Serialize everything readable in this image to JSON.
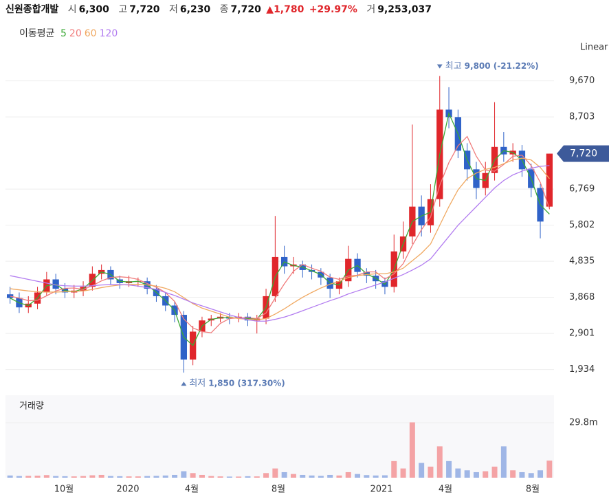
{
  "header": {
    "name": "신원종합개발",
    "open_label": "시",
    "open": "6,300",
    "high_label": "고",
    "high": "7,720",
    "low_label": "저",
    "low": "6,230",
    "close_label": "종",
    "close": "7,720",
    "change": "▲1,780",
    "change_pct": "+29.97%",
    "volume_label": "거",
    "volume": "9,253,037"
  },
  "ma_legend": {
    "title": "이동평균",
    "items": [
      "5",
      "20",
      "60",
      "120"
    ]
  },
  "scale_label": "Linear",
  "chart_data": [
    {
      "type": "candlestick",
      "up_color": "#e0262b",
      "down_color": "#2f62c8",
      "categories": [
        null,
        null,
        null,
        null,
        null,
        null,
        null,
        null,
        null,
        null,
        null,
        null,
        null,
        null,
        null,
        null,
        null,
        null,
        null,
        null,
        null,
        null,
        null,
        null,
        null,
        null,
        null,
        null,
        null,
        null,
        null,
        null,
        null,
        null,
        null,
        null,
        null,
        null,
        null,
        null,
        null,
        null,
        null,
        null,
        null,
        null,
        null,
        null,
        null,
        null,
        null,
        null,
        null,
        null,
        null,
        null,
        null,
        null,
        null,
        null
      ],
      "open": [
        3950,
        3850,
        3600,
        3700,
        4000,
        4350,
        4100,
        4000,
        4050,
        4150,
        4500,
        4600,
        4350,
        4250,
        4300,
        4300,
        4100,
        3900,
        3650,
        3400,
        2200,
        2950,
        3250,
        3300,
        3350,
        3300,
        3350,
        3250,
        3300,
        3900,
        4950,
        4700,
        4750,
        4600,
        4550,
        4400,
        4100,
        4300,
        4900,
        4550,
        4450,
        4300,
        4150,
        5100,
        5500,
        6300,
        5800,
        6500,
        8900,
        8700,
        7800,
        7300,
        6800,
        7200,
        7900,
        7700,
        7800,
        7300,
        6800,
        6300
      ],
      "high": [
        4150,
        4000,
        3900,
        4150,
        4550,
        4500,
        4250,
        4200,
        4300,
        4700,
        4750,
        4700,
        4450,
        4450,
        4400,
        4400,
        4200,
        4000,
        3750,
        3500,
        3100,
        3350,
        3400,
        3450,
        3450,
        3450,
        3450,
        3400,
        4100,
        6050,
        5250,
        4950,
        4850,
        4750,
        4650,
        4500,
        4400,
        5250,
        5050,
        4650,
        4600,
        4400,
        5550,
        5900,
        8500,
        6600,
        6900,
        9800,
        9500,
        8900,
        8000,
        7500,
        7500,
        9100,
        8300,
        8000,
        7950,
        7450,
        6900,
        7720
      ],
      "low": [
        3700,
        3450,
        3450,
        3550,
        3900,
        3950,
        3850,
        3850,
        3900,
        4050,
        4350,
        4200,
        4100,
        4150,
        4150,
        3950,
        3750,
        3500,
        3200,
        1850,
        2050,
        2800,
        3100,
        3200,
        3150,
        3200,
        3100,
        2900,
        3150,
        3750,
        4500,
        4500,
        4400,
        4350,
        4200,
        3850,
        3950,
        4150,
        4400,
        4250,
        4100,
        3950,
        4000,
        4900,
        5300,
        5500,
        5600,
        6300,
        8400,
        7600,
        7000,
        6500,
        6600,
        7000,
        7500,
        7500,
        7100,
        6550,
        5450,
        6230
      ],
      "close": [
        3850,
        3600,
        3700,
        4000,
        4350,
        4100,
        4000,
        4050,
        4150,
        4500,
        4600,
        4350,
        4250,
        4300,
        4300,
        4100,
        3900,
        3650,
        3400,
        2200,
        2950,
        3250,
        3300,
        3350,
        3300,
        3350,
        3250,
        3300,
        3900,
        4950,
        4700,
        4750,
        4600,
        4550,
        4400,
        4100,
        4300,
        4900,
        4550,
        4450,
        4300,
        4150,
        5100,
        5500,
        6300,
        5800,
        6500,
        8900,
        8700,
        7800,
        7300,
        6800,
        7200,
        7900,
        7700,
        7800,
        7300,
        6800,
        5900,
        7720
      ],
      "series": [
        {
          "name": "5",
          "color": "#3aa835",
          "values": [
            3850,
            3720,
            3650,
            3850,
            4180,
            4220,
            4050,
            4020,
            4100,
            4320,
            4550,
            4480,
            4300,
            4280,
            4300,
            4200,
            4000,
            3780,
            3520,
            2800,
            2580,
            3100,
            3280,
            3320,
            3320,
            3320,
            3300,
            3280,
            3600,
            4420,
            4820,
            4720,
            4680,
            4580,
            4480,
            4250,
            4200,
            4600,
            4720,
            4500,
            4380,
            4220,
            4620,
            5300,
            5900,
            6050,
            6150,
            7700,
            8800,
            8250,
            7550,
            7050,
            7000,
            7550,
            7800,
            7750,
            7550,
            7050,
            6350,
            6100
          ]
        },
        {
          "name": "20",
          "color": "#f07b7b",
          "values": [
            3900,
            3850,
            3780,
            3790,
            3910,
            4040,
            4110,
            4120,
            4080,
            4180,
            4310,
            4400,
            4420,
            4400,
            4350,
            4240,
            4140,
            4000,
            3760,
            3290,
            3050,
            2950,
            2920,
            3170,
            3300,
            3320,
            3320,
            3300,
            3450,
            3850,
            4230,
            4570,
            4750,
            4650,
            4570,
            4410,
            4350,
            4440,
            4460,
            4550,
            4550,
            4360,
            4500,
            4770,
            5260,
            5680,
            6020,
            6870,
            7480,
            7930,
            8180,
            7650,
            7280,
            7250,
            7430,
            7650,
            7680,
            7400,
            6950,
            6250
          ]
        },
        {
          "name": "60",
          "color": "#f0a860",
          "values": [
            4100,
            4070,
            4040,
            4020,
            4010,
            4010,
            4020,
            4030,
            4040,
            4080,
            4130,
            4170,
            4200,
            4210,
            4220,
            4200,
            4170,
            4110,
            4020,
            3860,
            3700,
            3580,
            3500,
            3420,
            3340,
            3300,
            3280,
            3270,
            3300,
            3420,
            3560,
            3720,
            3870,
            4000,
            4120,
            4220,
            4300,
            4400,
            4450,
            4480,
            4500,
            4500,
            4550,
            4650,
            4850,
            5050,
            5300,
            5800,
            6300,
            6750,
            7050,
            7200,
            7300,
            7350,
            7450,
            7550,
            7600,
            7550,
            7350,
            7050
          ]
        },
        {
          "name": "120",
          "color": "#b27cf0",
          "values": [
            4450,
            4400,
            4350,
            4300,
            4250,
            4200,
            4180,
            4170,
            4170,
            4180,
            4200,
            4210,
            4210,
            4200,
            4170,
            4130,
            4080,
            4000,
            3920,
            3820,
            3720,
            3640,
            3560,
            3480,
            3400,
            3330,
            3270,
            3230,
            3230,
            3280,
            3340,
            3420,
            3510,
            3600,
            3690,
            3780,
            3860,
            3960,
            4040,
            4120,
            4200,
            4280,
            4380,
            4480,
            4600,
            4730,
            4900,
            5200,
            5500,
            5800,
            6050,
            6300,
            6550,
            6800,
            7000,
            7150,
            7250,
            7330,
            7380,
            7400
          ]
        }
      ],
      "ylim": [
        1430,
        10180
      ],
      "yticks": [
        {
          "value": 9670,
          "label": "9,670"
        },
        {
          "value": 8703,
          "label": "8,703"
        },
        {
          "value": 6769,
          "label": "6,769"
        },
        {
          "value": 5802,
          "label": "5,802"
        },
        {
          "value": 4835,
          "label": "4,835"
        },
        {
          "value": 3868,
          "label": "3,868"
        },
        {
          "value": 2901,
          "label": "2,901"
        },
        {
          "value": 1934,
          "label": "1,934"
        }
      ],
      "grid": true,
      "last_price": {
        "value": 7720,
        "label": "7,720",
        "color": "#3d5a9a"
      },
      "annotations": [
        {
          "label": "최고",
          "text": "9,800 (-21.22%)",
          "value": 9800,
          "index": 47,
          "color": "#5b7bb5"
        },
        {
          "label": "최저",
          "text": "1,850 (317.30%)",
          "value": 1850,
          "index": 19,
          "color": "#5b7bb5"
        }
      ],
      "x_labels": [
        "10월",
        "2020",
        "4월",
        "8월",
        "2021",
        "4월",
        "8월"
      ]
    },
    {
      "type": "bar",
      "title": "거래량",
      "values": [
        1200000,
        900000,
        1000000,
        1100000,
        1400000,
        900000,
        800000,
        700000,
        900000,
        1300000,
        1500000,
        900000,
        800000,
        700000,
        700000,
        900000,
        1000000,
        1200000,
        1500000,
        3500000,
        2500000,
        1500000,
        900000,
        700000,
        600000,
        600000,
        800000,
        700000,
        2500000,
        5000000,
        3000000,
        2000000,
        1500000,
        1200000,
        1000000,
        1500000,
        1200000,
        3000000,
        2000000,
        1400000,
        1200000,
        1300000,
        9000000,
        5000000,
        30000000,
        8000000,
        6000000,
        17000000,
        9000000,
        5000000,
        4000000,
        3000000,
        3500000,
        6000000,
        17000000,
        4000000,
        3000000,
        2500000,
        4000000,
        9253037
      ],
      "ylim": [
        0,
        44700000
      ],
      "yticks": [
        {
          "value": 29800000,
          "label": "29.8m"
        }
      ]
    }
  ]
}
